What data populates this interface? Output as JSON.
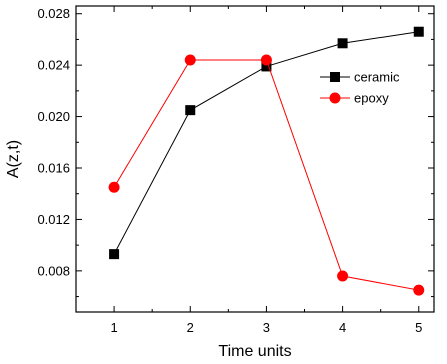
{
  "chart_data": {
    "type": "line",
    "title": "",
    "xlabel": "Time units",
    "ylabel": "A(z,t)",
    "x": [
      1,
      2,
      3,
      4,
      5
    ],
    "xlim": [
      0.5,
      5.2
    ],
    "ylim": [
      0.0048,
      0.0286
    ],
    "x_ticks": [
      1,
      2,
      3,
      4,
      5
    ],
    "x_tick_labels": [
      "1",
      "2",
      "3",
      "4",
      "5"
    ],
    "y_ticks": [
      0.008,
      0.012,
      0.016,
      0.02,
      0.024,
      0.028
    ],
    "y_tick_labels": [
      "0.008",
      "0.012",
      "0.016",
      "0.020",
      "0.024",
      "0.028"
    ],
    "grid": false,
    "legend_position": "top-right",
    "series": [
      {
        "name": "ceramic",
        "values": [
          0.0093,
          0.0205,
          0.0239,
          0.0257,
          0.0266
        ],
        "color": "#000000",
        "marker": "square"
      },
      {
        "name": "epoxy",
        "values": [
          0.0145,
          0.0244,
          0.0244,
          0.0076,
          0.0065
        ],
        "color": "#ff0000",
        "marker": "circle"
      }
    ]
  }
}
